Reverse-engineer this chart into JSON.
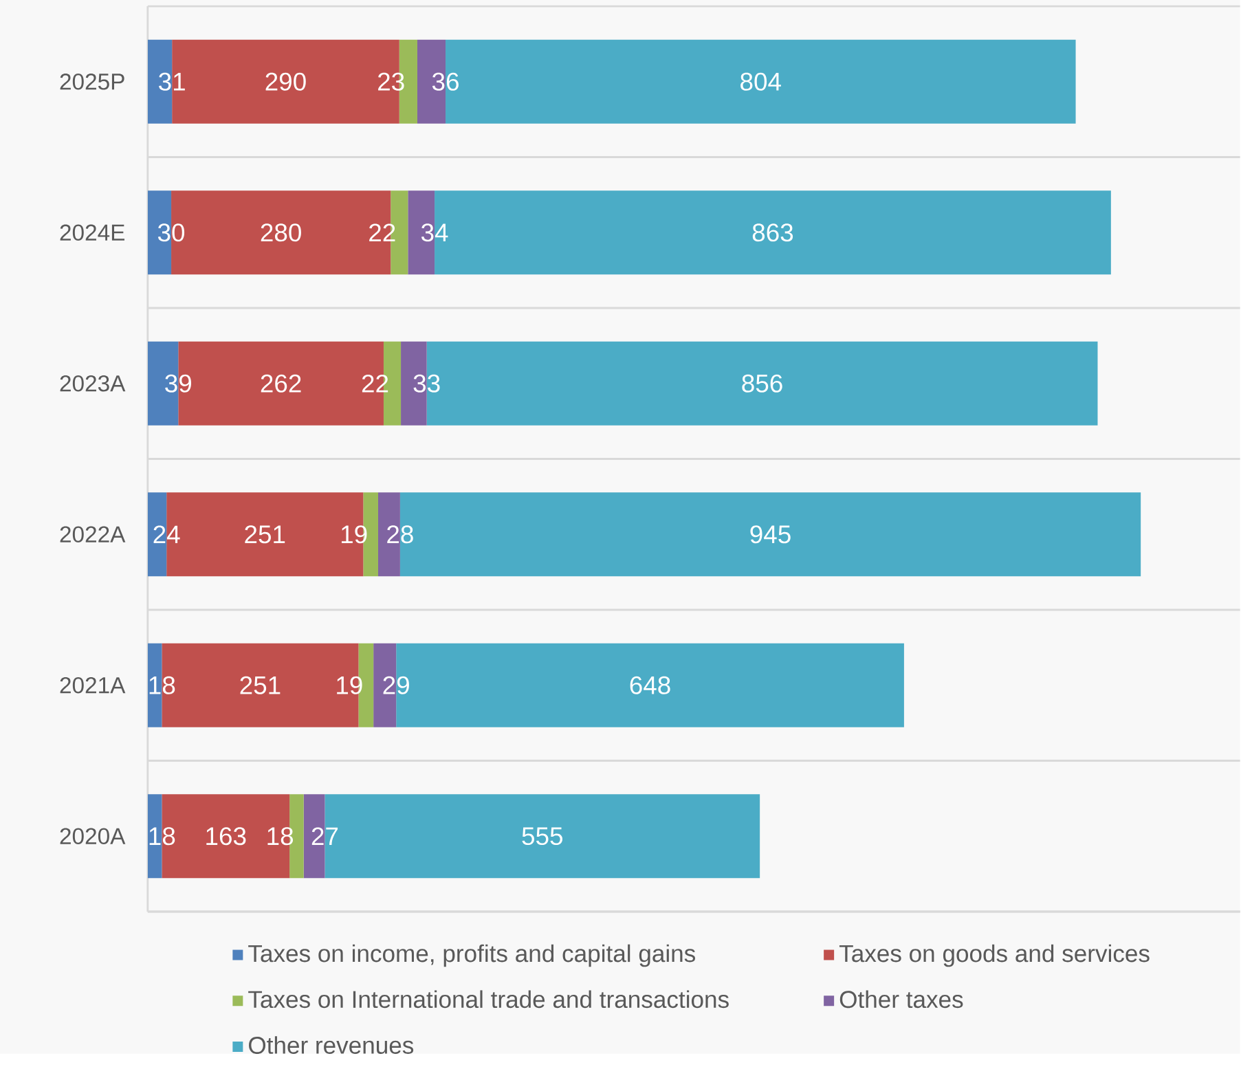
{
  "chart_data": {
    "type": "bar",
    "orientation": "horizontal",
    "stacked": true,
    "categories": [
      "2025P",
      "2024E",
      "2023A",
      "2022A",
      "2021A",
      "2020A"
    ],
    "series": [
      {
        "name": "Taxes on income, profits and capital gains",
        "color": "#4f81bd",
        "values": [
          31,
          30,
          39,
          24,
          18,
          18
        ]
      },
      {
        "name": "Taxes on goods and services",
        "color": "#c0504d",
        "values": [
          290,
          280,
          262,
          251,
          251,
          163
        ]
      },
      {
        "name": "Taxes on International trade and transactions",
        "color": "#9bbb59",
        "values": [
          23,
          22,
          22,
          19,
          19,
          18
        ]
      },
      {
        "name": "Other taxes",
        "color": "#8064a2",
        "values": [
          36,
          34,
          33,
          28,
          29,
          27
        ]
      },
      {
        "name": "Other revenues",
        "color": "#4bacc6",
        "values": [
          804,
          863,
          856,
          945,
          648,
          555
        ]
      }
    ],
    "tick_labels": "y",
    "data_labels": true,
    "grid": "y",
    "legend": "bottom"
  }
}
